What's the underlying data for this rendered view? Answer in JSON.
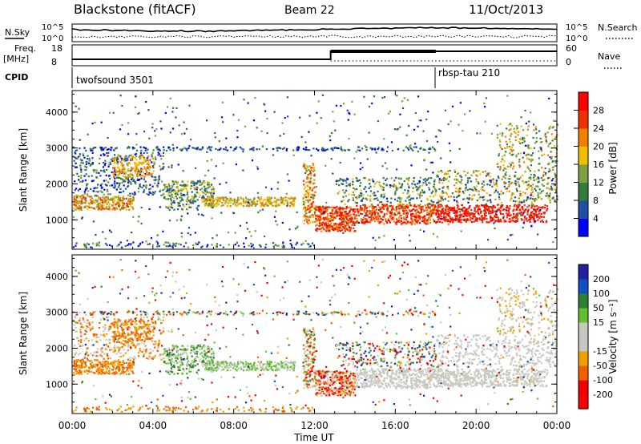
{
  "header": {
    "station": "Blackstone (fitACF)",
    "beam": "Beam 22",
    "date": "11/Oct/2013"
  },
  "noise_panel": {
    "left_label": "N.Sky",
    "right_label": "N.Search",
    "left_ticks": [
      "10^5",
      "10^0"
    ],
    "right_ticks": [
      "10^5",
      "10^0"
    ]
  },
  "freq_panel": {
    "left_label_1": "Freq.",
    "left_label_2": "[MHz]",
    "right_label": "Nave",
    "left_ticks": [
      "18",
      "8"
    ],
    "right_ticks": [
      "60",
      "0"
    ]
  },
  "cpid": {
    "label": "CPID",
    "programs": [
      {
        "name": "twofsound 3501",
        "start_hour": 0
      },
      {
        "name": "rbsp-tau 210",
        "start_hour": 18
      }
    ]
  },
  "colors": {
    "power_scale": [
      "#0000ff",
      "#1e4fa0",
      "#2f7c3c",
      "#7fa040",
      "#f0c000",
      "#f08000",
      "#f03000",
      "#ff0000"
    ],
    "velocity_scale": [
      "#2020a0",
      "#1050c0",
      "#308030",
      "#60c030",
      "#c8c8c0",
      "#c8c8c0",
      "#f0a000",
      "#f06000",
      "#f00000",
      "#ff0000"
    ],
    "axis": "#000000"
  },
  "chart_data": [
    {
      "type": "heatmap",
      "panel": "power",
      "ylabel": "Slant Range [km]",
      "ylim": [
        180,
        4600
      ],
      "yticks": [
        "1000",
        "2000",
        "3000",
        "4000"
      ],
      "xlim": [
        0,
        24
      ],
      "colorbar_label": "Power [dB]",
      "colorbar_ticks": [
        "4",
        "8",
        "12",
        "16",
        "20",
        "24",
        "28"
      ],
      "colorbar_range": [
        0,
        32
      ]
    },
    {
      "type": "heatmap",
      "panel": "velocity",
      "ylabel": "Slant Range [km]",
      "ylim": [
        180,
        4600
      ],
      "yticks": [
        "1000",
        "2000",
        "3000",
        "4000"
      ],
      "xlim": [
        0,
        24
      ],
      "colorbar_label": "Velocity [m s⁻¹]",
      "colorbar_ticks": [
        "200",
        "100",
        "50",
        "15",
        "-15",
        "-50",
        "-100",
        "-200"
      ]
    }
  ],
  "xaxis": {
    "label": "Time UT",
    "ticks": [
      "00:00",
      "04:00",
      "08:00",
      "12:00",
      "16:00",
      "20:00",
      "00:00"
    ]
  }
}
